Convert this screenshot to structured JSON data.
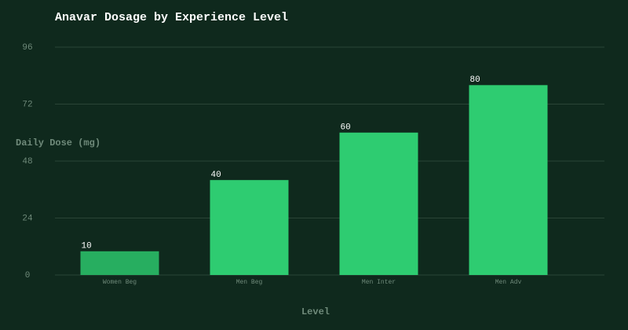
{
  "chart_data": {
    "type": "bar",
    "title": "Anavar Dosage by Experience Level",
    "x_label": "Level",
    "y_label": "Daily Dose (mg)",
    "categories": [
      "Women Beg",
      "Men Beg",
      "Men Inter",
      "Men Adv"
    ],
    "values": [
      10,
      40,
      60,
      80
    ],
    "colors": [
      "#27ae60",
      "#2ecc71",
      "#2ecc71",
      "#2ecc71"
    ],
    "ylim": [
      0,
      96
    ],
    "yticks": [
      0,
      24,
      48,
      72,
      96
    ],
    "grid": true
  }
}
